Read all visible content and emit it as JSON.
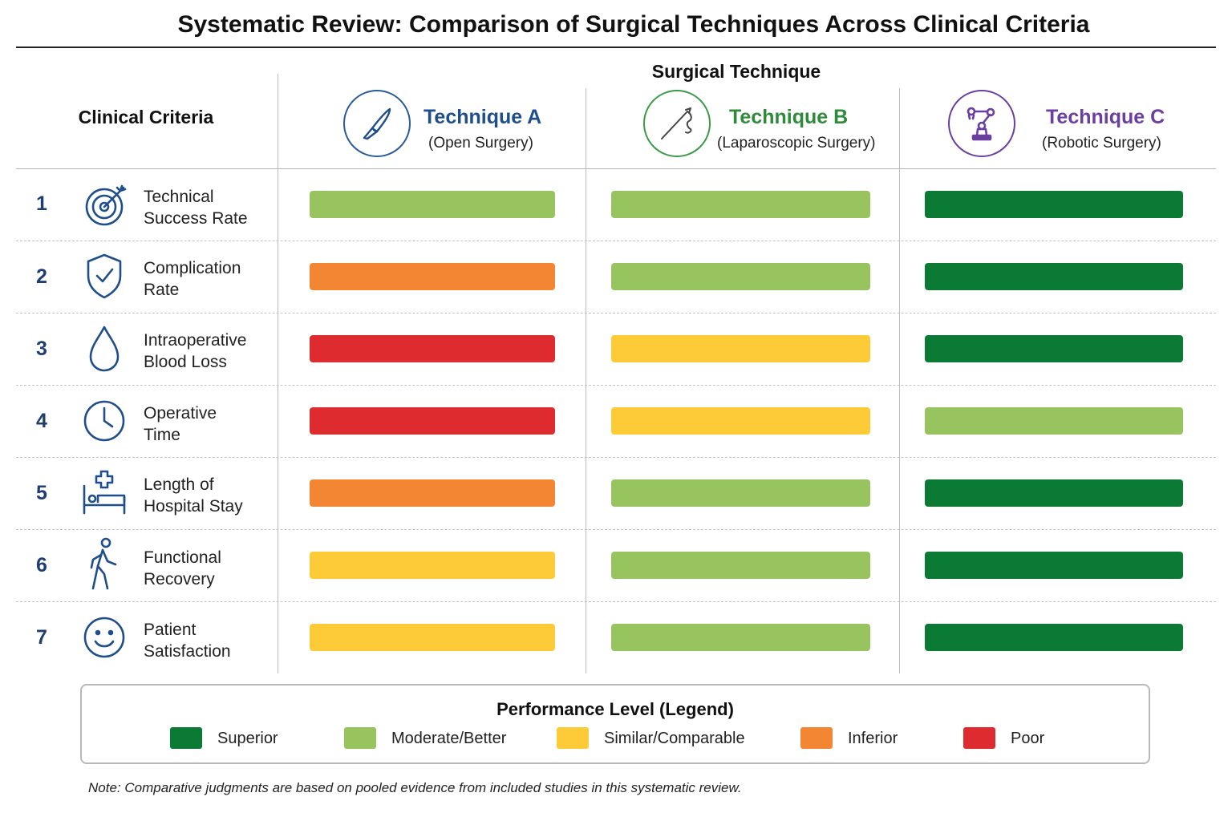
{
  "title": "Systematic Review: Comparison of Surgical Techniques Across Clinical Criteria",
  "header": {
    "group_label": "Surgical Technique",
    "criteria_label": "Clinical Criteria"
  },
  "techniques": [
    {
      "name": "Technique A",
      "subtitle": "(Open Surgery)",
      "color": "#1f4e8c",
      "icon": "scalpel-icon"
    },
    {
      "name": "Technique B",
      "subtitle": "(Laparoscopic Surgery)",
      "color": "#2e8b3a",
      "icon": "laparoscopic-instrument-icon"
    },
    {
      "name": "Technique C",
      "subtitle": "(Robotic Surgery)",
      "color": "#6b3fa0",
      "icon": "robotic-arm-icon"
    }
  ],
  "criteria": [
    {
      "num": "1",
      "line1": "Technical",
      "line2": "Success Rate",
      "icon": "target-icon"
    },
    {
      "num": "2",
      "line1": "Complication",
      "line2": "Rate",
      "icon": "shield-check-icon"
    },
    {
      "num": "3",
      "line1": "Intraoperative",
      "line2": "Blood Loss",
      "icon": "blood-drop-icon"
    },
    {
      "num": "4",
      "line1": "Operative",
      "line2": "Time",
      "icon": "clock-icon"
    },
    {
      "num": "5",
      "line1": "Length of",
      "line2": "Hospital Stay",
      "icon": "hospital-bed-icon"
    },
    {
      "num": "6",
      "line1": "Functional",
      "line2": "Recovery",
      "icon": "walking-person-icon"
    },
    {
      "num": "7",
      "line1": "Patient",
      "line2": "Satisfaction",
      "icon": "smiley-face-icon"
    }
  ],
  "legend": {
    "title": "Performance Level (Legend)",
    "items": [
      {
        "key": "superior",
        "label": "Superior",
        "color": "#0b7a35"
      },
      {
        "key": "moderate",
        "label": "Moderate/Better",
        "color": "#97c45e"
      },
      {
        "key": "similar",
        "label": "Similar/Comparable",
        "color": "#fccb37"
      },
      {
        "key": "inferior",
        "label": "Inferior",
        "color": "#f28633"
      },
      {
        "key": "poor",
        "label": "Poor",
        "color": "#de2b2f"
      }
    ]
  },
  "note": "Note: Comparative judgments are based on pooled evidence from included studies in this systematic review.",
  "chart_data": {
    "type": "heatmap",
    "title": "Systematic Review: Comparison of Surgical Techniques Across Clinical Criteria",
    "columns": [
      "Technique A (Open Surgery)",
      "Technique B (Laparoscopic Surgery)",
      "Technique C (Robotic Surgery)"
    ],
    "rows": [
      "Technical Success Rate",
      "Complication Rate",
      "Intraoperative Blood Loss",
      "Operative Time",
      "Length of Hospital Stay",
      "Functional Recovery",
      "Patient Satisfaction"
    ],
    "ratings": [
      [
        "Moderate/Better",
        "Moderate/Better",
        "Superior"
      ],
      [
        "Inferior",
        "Moderate/Better",
        "Superior"
      ],
      [
        "Poor",
        "Similar/Comparable",
        "Superior"
      ],
      [
        "Poor",
        "Similar/Comparable",
        "Moderate/Better"
      ],
      [
        "Inferior",
        "Moderate/Better",
        "Superior"
      ],
      [
        "Similar/Comparable",
        "Moderate/Better",
        "Superior"
      ],
      [
        "Similar/Comparable",
        "Moderate/Better",
        "Superior"
      ]
    ],
    "legend_position": "bottom"
  }
}
